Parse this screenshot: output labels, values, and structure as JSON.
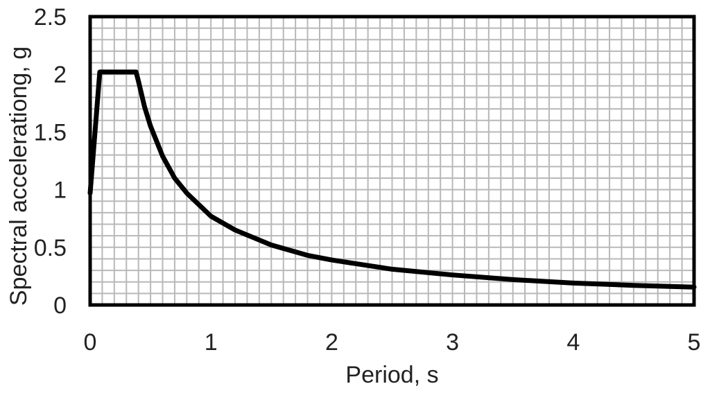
{
  "chart_data": {
    "type": "line",
    "title": "",
    "xlabel": "Period, s",
    "ylabel": "Spectral accelerationg, g",
    "xlim": [
      0,
      5
    ],
    "ylim": [
      0,
      2.5
    ],
    "x_ticks": [
      "0",
      "1",
      "2",
      "3",
      "4",
      "5"
    ],
    "y_ticks": [
      "0",
      "0.5",
      "1",
      "1.5",
      "2",
      "2.5"
    ],
    "x_minor_step": 0.1,
    "y_minor_step": 0.1,
    "grid": true,
    "series": [
      {
        "color": "#000000",
        "x": [
          0,
          0.08,
          0.38,
          0.4,
          0.45,
          0.5,
          0.6,
          0.7,
          0.8,
          1.0,
          1.2,
          1.5,
          1.8,
          2.0,
          2.5,
          3.0,
          3.5,
          4.0,
          4.5,
          5.0
        ],
        "y": [
          0.97,
          2.02,
          2.02,
          1.94,
          1.72,
          1.55,
          1.29,
          1.1,
          0.97,
          0.77,
          0.65,
          0.52,
          0.43,
          0.39,
          0.31,
          0.26,
          0.22,
          0.19,
          0.17,
          0.155
        ]
      }
    ]
  }
}
